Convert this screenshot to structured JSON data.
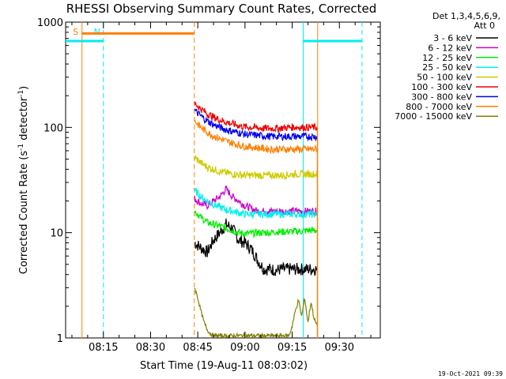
{
  "chart_data": {
    "type": "line",
    "title": "RHESSI Observing Summary Count Rates, Corrected",
    "xlabel": "Start Time (19-Aug-11 08:03:02)",
    "ylabel_main": "Corrected Count Rate (s",
    "ylabel_sup1": "-1",
    "ylabel_mid": " detector",
    "ylabel_sup2": "-1",
    "ylabel_end": ")",
    "yscale": "log",
    "ylim": [
      1,
      1000
    ],
    "xlim_min": [
      3,
      103
    ],
    "x_ticks": [
      {
        "min": 15,
        "label": "08:15"
      },
      {
        "min": 30,
        "label": "08:30"
      },
      {
        "min": 45,
        "label": "08:45"
      },
      {
        "min": 60,
        "label": "09:00"
      },
      {
        "min": 75,
        "label": "09:15"
      },
      {
        "min": 90,
        "label": "09:30"
      }
    ],
    "y_ticks": [
      {
        "value": 1,
        "label": "1"
      },
      {
        "value": 10,
        "label": "10"
      },
      {
        "value": 100,
        "label": "100"
      },
      {
        "value": 1000,
        "label": "1000"
      }
    ],
    "legend_header": [
      "Det 1,3,4,5,6,9,",
      "Att 0"
    ],
    "legend_position": "right",
    "series": [
      {
        "name": "3 - 6 keV",
        "color": "#000000",
        "points": [
          [
            44,
            8
          ],
          [
            46,
            7.2
          ],
          [
            48,
            6.5
          ],
          [
            50,
            8.5
          ],
          [
            52,
            10
          ],
          [
            54,
            12
          ],
          [
            56,
            11
          ],
          [
            58,
            8.5
          ],
          [
            60,
            8
          ],
          [
            62,
            7
          ],
          [
            64,
            5.5
          ],
          [
            66,
            4.5
          ],
          [
            68,
            4.5
          ],
          [
            70,
            4.4
          ],
          [
            72,
            4.5
          ],
          [
            74,
            4.5
          ],
          [
            76,
            4.5
          ],
          [
            78,
            4.5
          ],
          [
            80,
            4.5
          ],
          [
            82,
            4.5
          ],
          [
            83,
            4.5
          ]
        ]
      },
      {
        "name": "6 - 12 keV",
        "color": "#cc00cc",
        "points": [
          [
            44,
            21
          ],
          [
            46,
            19
          ],
          [
            48,
            18
          ],
          [
            50,
            20
          ],
          [
            52,
            22
          ],
          [
            54,
            26
          ],
          [
            56,
            22
          ],
          [
            58,
            20
          ],
          [
            60,
            18
          ],
          [
            62,
            17
          ],
          [
            64,
            16
          ],
          [
            66,
            16
          ],
          [
            68,
            16
          ],
          [
            70,
            16
          ],
          [
            72,
            16
          ],
          [
            74,
            16
          ],
          [
            76,
            16
          ],
          [
            78,
            16
          ],
          [
            80,
            16
          ],
          [
            82,
            16
          ],
          [
            83,
            16
          ]
        ]
      },
      {
        "name": "12 - 25 keV",
        "color": "#00ee00",
        "points": [
          [
            44,
            16
          ],
          [
            46,
            14
          ],
          [
            48,
            12.5
          ],
          [
            50,
            12
          ],
          [
            52,
            11.5
          ],
          [
            54,
            11
          ],
          [
            56,
            10.5
          ],
          [
            58,
            10
          ],
          [
            60,
            9.8
          ],
          [
            62,
            9.8
          ],
          [
            64,
            10
          ],
          [
            66,
            10
          ],
          [
            68,
            10
          ],
          [
            70,
            10.2
          ],
          [
            72,
            10.2
          ],
          [
            74,
            10.2
          ],
          [
            76,
            10.3
          ],
          [
            78,
            10.3
          ],
          [
            80,
            10.5
          ],
          [
            82,
            10.5
          ],
          [
            83,
            10.5
          ]
        ]
      },
      {
        "name": "25 - 50 keV",
        "color": "#00eeee",
        "points": [
          [
            44,
            25
          ],
          [
            46,
            22
          ],
          [
            48,
            20
          ],
          [
            50,
            18.5
          ],
          [
            52,
            17.5
          ],
          [
            54,
            16.5
          ],
          [
            56,
            16
          ],
          [
            58,
            15.5
          ],
          [
            60,
            15
          ],
          [
            62,
            15
          ],
          [
            64,
            15
          ],
          [
            66,
            15
          ],
          [
            68,
            15
          ],
          [
            70,
            15
          ],
          [
            72,
            15
          ],
          [
            74,
            15
          ],
          [
            76,
            15
          ],
          [
            78,
            15
          ],
          [
            80,
            15
          ],
          [
            82,
            15
          ],
          [
            83,
            15
          ]
        ]
      },
      {
        "name": "50 - 100 keV",
        "color": "#cccc00",
        "points": [
          [
            44,
            52
          ],
          [
            46,
            46
          ],
          [
            48,
            42
          ],
          [
            50,
            40
          ],
          [
            52,
            38
          ],
          [
            54,
            37
          ],
          [
            56,
            36
          ],
          [
            58,
            35.5
          ],
          [
            60,
            35
          ],
          [
            62,
            35
          ],
          [
            64,
            35
          ],
          [
            66,
            35
          ],
          [
            68,
            35
          ],
          [
            70,
            35
          ],
          [
            72,
            35
          ],
          [
            74,
            35.5
          ],
          [
            76,
            36
          ],
          [
            78,
            36
          ],
          [
            80,
            36
          ],
          [
            82,
            36
          ],
          [
            83,
            36
          ]
        ]
      },
      {
        "name": "100 - 300 keV",
        "color": "#ee0000",
        "points": [
          [
            44,
            170
          ],
          [
            46,
            150
          ],
          [
            48,
            135
          ],
          [
            50,
            125
          ],
          [
            52,
            118
          ],
          [
            54,
            112
          ],
          [
            56,
            108
          ],
          [
            58,
            104
          ],
          [
            60,
            101
          ],
          [
            62,
            100
          ],
          [
            64,
            99
          ],
          [
            66,
            98
          ],
          [
            68,
            98
          ],
          [
            70,
            98
          ],
          [
            72,
            99
          ],
          [
            74,
            100
          ],
          [
            76,
            101
          ],
          [
            78,
            100
          ],
          [
            80,
            100
          ],
          [
            82,
            100
          ],
          [
            83,
            100
          ]
        ]
      },
      {
        "name": "300 - 800 keV",
        "color": "#0000ee",
        "points": [
          [
            44,
            145
          ],
          [
            46,
            128
          ],
          [
            48,
            115
          ],
          [
            50,
            106
          ],
          [
            52,
            100
          ],
          [
            54,
            95
          ],
          [
            56,
            92
          ],
          [
            58,
            89
          ],
          [
            60,
            86
          ],
          [
            62,
            85
          ],
          [
            64,
            84
          ],
          [
            66,
            83
          ],
          [
            68,
            82
          ],
          [
            70,
            82
          ],
          [
            72,
            82
          ],
          [
            74,
            82
          ],
          [
            76,
            82
          ],
          [
            78,
            82
          ],
          [
            80,
            82
          ],
          [
            82,
            82
          ],
          [
            83,
            82
          ]
        ]
      },
      {
        "name": "800 - 7000 keV",
        "color": "#ff7f00",
        "points": [
          [
            44,
            115
          ],
          [
            46,
            100
          ],
          [
            48,
            90
          ],
          [
            50,
            83
          ],
          [
            52,
            78
          ],
          [
            54,
            74
          ],
          [
            56,
            71
          ],
          [
            58,
            68
          ],
          [
            60,
            66
          ],
          [
            62,
            65
          ],
          [
            64,
            64
          ],
          [
            66,
            63
          ],
          [
            68,
            62
          ],
          [
            70,
            62
          ],
          [
            72,
            62
          ],
          [
            74,
            62
          ],
          [
            76,
            62
          ],
          [
            78,
            62
          ],
          [
            80,
            62
          ],
          [
            82,
            62
          ],
          [
            83,
            62
          ]
        ]
      },
      {
        "name": "7000 - 15000 keV",
        "color": "#808000",
        "points": [
          [
            44,
            3
          ],
          [
            45,
            2.4
          ],
          [
            46,
            1.8
          ],
          [
            47,
            1.4
          ],
          [
            48,
            1.2
          ],
          [
            49,
            1.1
          ],
          [
            50,
            1.05
          ],
          [
            74,
            1.05
          ],
          [
            75,
            1.3
          ],
          [
            76,
            1.8
          ],
          [
            77,
            2.3
          ],
          [
            78,
            1.6
          ],
          [
            79,
            2.4
          ],
          [
            80,
            1.4
          ],
          [
            81,
            2.2
          ],
          [
            82,
            1.5
          ],
          [
            83,
            1.3
          ]
        ]
      }
    ],
    "markers": [
      {
        "min": 8.2,
        "color": "#ff7f00",
        "style": "solid",
        "label": "S"
      },
      {
        "min": 15,
        "color": "#00eeee",
        "style": "dashed",
        "label": "N"
      },
      {
        "min": 43.9,
        "color": "#ff7f00",
        "style": "dashed",
        "label": ""
      },
      {
        "min": 78.5,
        "color": "#00eeee",
        "style": "solid",
        "label": ""
      },
      {
        "min": 83.1,
        "color": "#ff7f00",
        "style": "solid",
        "label": ""
      },
      {
        "min": 97.2,
        "color": "#00eeee",
        "style": "dashed",
        "label": ""
      }
    ],
    "status_bars": [
      {
        "color": "#ff7f00",
        "y": 780,
        "from": 8.2,
        "to": 43.9
      },
      {
        "color": "#00eeee",
        "y": 660,
        "from": 3,
        "to": 15
      },
      {
        "color": "#00eeee",
        "y": 660,
        "from": 78.5,
        "to": 97.2
      }
    ]
  },
  "footer_stamp": "19-Oct-2021 09:39"
}
